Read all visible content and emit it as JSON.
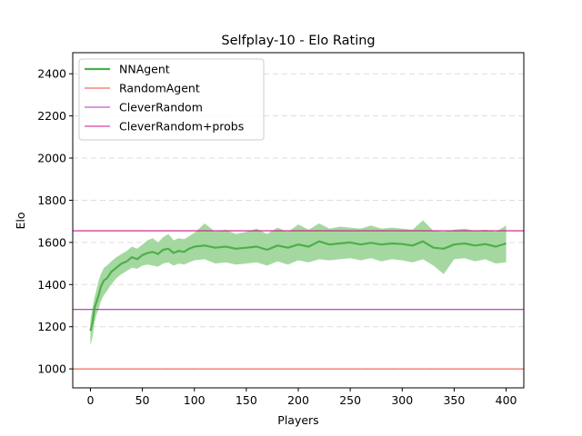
{
  "chart_data": {
    "type": "line",
    "title": "Selfplay-10 - Elo Rating",
    "xlabel": "Players",
    "ylabel": "Elo",
    "xlim": [
      -17,
      417
    ],
    "ylim": [
      910,
      2500
    ],
    "xticks": [
      0,
      50,
      100,
      150,
      200,
      250,
      300,
      350,
      400
    ],
    "yticks": [
      1000,
      1200,
      1400,
      1600,
      1800,
      2000,
      2200,
      2400
    ],
    "grid": "horizontal-dashed",
    "legend_position": "top-left",
    "series": [
      {
        "name": "NNAgent",
        "color": "#4daf4a",
        "band_color": "#a5d8a0",
        "x": [
          0,
          2,
          4,
          6,
          8,
          10,
          13,
          16,
          20,
          25,
          30,
          35,
          40,
          45,
          50,
          55,
          60,
          65,
          70,
          75,
          80,
          85,
          90,
          95,
          100,
          110,
          120,
          130,
          140,
          150,
          160,
          170,
          180,
          190,
          200,
          210,
          220,
          230,
          240,
          250,
          260,
          270,
          280,
          290,
          300,
          310,
          320,
          330,
          340,
          350,
          360,
          370,
          380,
          390,
          400
        ],
        "values": [
          1180,
          1220,
          1290,
          1320,
          1350,
          1390,
          1420,
          1430,
          1460,
          1480,
          1500,
          1510,
          1530,
          1520,
          1540,
          1550,
          1555,
          1545,
          1565,
          1570,
          1550,
          1560,
          1555,
          1570,
          1580,
          1585,
          1575,
          1580,
          1570,
          1575,
          1580,
          1565,
          1585,
          1575,
          1590,
          1580,
          1605,
          1590,
          1595,
          1600,
          1590,
          1598,
          1590,
          1595,
          1592,
          1585,
          1605,
          1575,
          1570,
          1590,
          1595,
          1585,
          1592,
          1580,
          1595
        ],
        "band_upper": [
          1230,
          1290,
          1340,
          1380,
          1420,
          1450,
          1480,
          1490,
          1510,
          1530,
          1545,
          1560,
          1580,
          1570,
          1590,
          1610,
          1620,
          1600,
          1625,
          1640,
          1610,
          1620,
          1615,
          1630,
          1645,
          1690,
          1650,
          1660,
          1640,
          1650,
          1665,
          1640,
          1670,
          1650,
          1685,
          1660,
          1690,
          1665,
          1675,
          1670,
          1665,
          1680,
          1665,
          1670,
          1665,
          1660,
          1705,
          1655,
          1650,
          1660,
          1665,
          1655,
          1660,
          1650,
          1680
        ],
        "band_lower": [
          1110,
          1150,
          1220,
          1260,
          1285,
          1320,
          1350,
          1370,
          1400,
          1430,
          1450,
          1465,
          1480,
          1475,
          1490,
          1495,
          1490,
          1485,
          1500,
          1505,
          1490,
          1500,
          1495,
          1505,
          1515,
          1520,
          1500,
          1505,
          1495,
          1500,
          1505,
          1490,
          1510,
          1495,
          1515,
          1505,
          1520,
          1515,
          1520,
          1525,
          1515,
          1525,
          1510,
          1520,
          1515,
          1505,
          1520,
          1490,
          1450,
          1520,
          1525,
          1510,
          1520,
          1500,
          1505
        ]
      },
      {
        "name": "RandomAgent",
        "color": "#e74c3c",
        "value": 1000
      },
      {
        "name": "CleverRandom",
        "color": "#b030b8",
        "value": 1282
      },
      {
        "name": "CleverRandom+probs",
        "color": "#d01485",
        "value": 1655
      }
    ]
  }
}
